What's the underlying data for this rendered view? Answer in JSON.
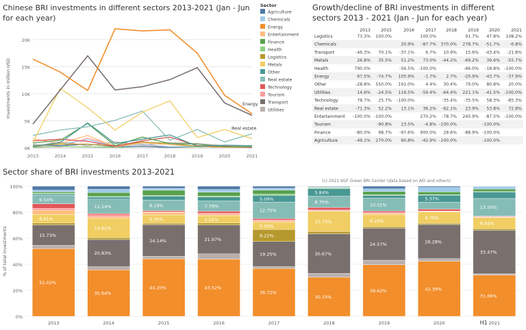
{
  "titles": {
    "line": "Chinese BRI investments in different sectors 2013-2021 (Jan - Jun for each year)",
    "table": "Growth/decline of BRI investments in different sectors 2013 - 2021 (Jan - Jun for each year)",
    "bar": "Sector share of BRI investments 2013-2021",
    "credit": "(c) 2021 IIGF Green BRI Center (data based on AEI and others)"
  },
  "legend": {
    "title": "Sector",
    "items": [
      {
        "name": "Agriculture",
        "color": "#4e79a7"
      },
      {
        "name": "Chemicals",
        "color": "#a0cbe8"
      },
      {
        "name": "Energy",
        "color": "#f28e2b"
      },
      {
        "name": "Entertainment",
        "color": "#ffbe7d"
      },
      {
        "name": "Finance",
        "color": "#59a14f"
      },
      {
        "name": "Health",
        "color": "#8cd17d"
      },
      {
        "name": "Logistics",
        "color": "#b6992d"
      },
      {
        "name": "Metals",
        "color": "#f1ce63"
      },
      {
        "name": "Other",
        "color": "#499894"
      },
      {
        "name": "Real estate",
        "color": "#86bcb6"
      },
      {
        "name": "Technology",
        "color": "#e15759"
      },
      {
        "name": "Tourism",
        "color": "#ff9d9a"
      },
      {
        "name": "Transport",
        "color": "#79706e"
      },
      {
        "name": "Utilities",
        "color": "#bab0ac"
      }
    ]
  },
  "chart_data": [
    {
      "type": "line",
      "title": "Chinese BRI investments in different sectors 2013-2021 (Jan - Jun for each year)",
      "xlabel": "",
      "ylabel": "Investments in million USD",
      "x": [
        "2013",
        "2014",
        "2015",
        "2016",
        "2017",
        "2018",
        "2019",
        "2020",
        "2021"
      ],
      "ylim": [
        0,
        22000
      ],
      "yticks": [
        "0K",
        "5K",
        "10K",
        "15K",
        "20K"
      ],
      "yticks_values": [
        0,
        5000,
        10000,
        15000,
        20000
      ],
      "annotations": [
        "Energy",
        "Real estate"
      ],
      "series": [
        {
          "name": "Energy",
          "values": [
            16400,
            14000,
            10600,
            22000,
            21600,
            21800,
            17500,
            9700,
            6300
          ]
        },
        {
          "name": "Transport",
          "values": [
            4400,
            10700,
            17000,
            10700,
            11300,
            12600,
            14800,
            8300,
            6000
          ]
        },
        {
          "name": "Metals",
          "values": [
            1000,
            11000,
            7400,
            3300,
            6600,
            8700,
            1900,
            3400,
            1700
          ]
        },
        {
          "name": "Real estate",
          "values": [
            2300,
            3300,
            3900,
            5100,
            6800,
            1400,
            3400,
            1100,
            2600
          ]
        },
        {
          "name": "Other",
          "values": [
            200,
            1000,
            4600,
            800,
            1600,
            2400,
            300,
            500,
            400
          ]
        },
        {
          "name": "Finance",
          "values": [
            900,
            1400,
            4500,
            400,
            2000,
            800,
            700,
            200,
            200
          ]
        },
        {
          "name": "Technology",
          "values": [
            1300,
            1600,
            1200,
            300,
            1300,
            2000,
            400,
            300,
            100
          ]
        },
        {
          "name": "Logistics",
          "values": [
            400,
            700,
            700,
            300,
            1100,
            800,
            300,
            200,
            100
          ]
        },
        {
          "name": "Entertainment",
          "values": [
            1700,
            800,
            2300,
            200,
            900,
            600,
            300,
            100,
            100
          ]
        },
        {
          "name": "Chemicals",
          "values": [
            500,
            700,
            1500,
            300,
            700,
            200,
            300,
            100,
            100
          ]
        },
        {
          "name": "Utilities",
          "values": [
            300,
            1100,
            400,
            1100,
            500,
            1000,
            800,
            400,
            200
          ]
        },
        {
          "name": "Agriculture",
          "values": [
            600,
            400,
            700,
            200,
            300,
            100,
            300,
            100,
            100
          ]
        },
        {
          "name": "Health",
          "values": [
            100,
            300,
            200,
            100,
            300,
            100,
            200,
            200,
            100
          ]
        },
        {
          "name": "Tourism",
          "values": [
            300,
            200,
            1800,
            400,
            600,
            200,
            300,
            100,
            100
          ]
        }
      ]
    },
    {
      "type": "table",
      "title": "Growth/decline of BRI investments in different sectors 2013 - 2021 (Jan - Jun for each year)",
      "columns": [
        "",
        "2013",
        "2015",
        "2016",
        "2017",
        "2018",
        "2019",
        "2020",
        "2021"
      ],
      "rows": [
        [
          "Logistics",
          "73.3%",
          "100.0%",
          "",
          "100.0%",
          "",
          "91.7%",
          "47.8%",
          "108.2%"
        ],
        [
          "Chemicals",
          "",
          "",
          "20.9%",
          "-87.7%",
          "370.0%",
          "278.7%",
          "-51.7%",
          "-6.8%"
        ],
        [
          "Transport",
          "-46.3%",
          "70.1%",
          "-37.1%",
          "6.7%",
          "10.9%",
          "15.6%",
          "-43.4%",
          "-21.8%"
        ],
        [
          "Metals",
          "26.8%",
          "35.5%",
          "51.2%",
          "73.0%",
          "-44.2%",
          "-69.2%",
          "39.6%",
          "-55.7%"
        ],
        [
          "Health",
          "790.0%",
          "",
          "-56.5%",
          "-100.0%",
          "",
          "-66.0%",
          "-18.8%",
          "-100.0%"
        ],
        [
          "Energy",
          "67.5%",
          "-74.7%",
          "105.9%",
          "-1.7%",
          "2.7%",
          "-20.9%",
          "-43.7%",
          "-37.9%"
        ],
        [
          "Other",
          "-28.8%",
          "550.0%",
          "191.0%",
          "4.4%",
          "30.4%",
          "79.0%",
          "80.8%",
          "20.0%"
        ],
        [
          "Utilities",
          "14.6%",
          "-24.5%",
          "116.5%",
          "-59.4%",
          "-64.4%",
          "221.1%",
          "-41.5%",
          "-100.0%"
        ],
        [
          "Technology",
          "78.7%",
          "25.7%",
          "-100.0%",
          "",
          "-35.4%",
          "-35.5%",
          "58.3%",
          "-85.3%"
        ],
        [
          "Real estate",
          "-71.3%",
          "52.2%",
          "13.1%",
          "36.2%",
          "-62.1%",
          "23.9%",
          "53.8%",
          "72.8%"
        ],
        [
          "Entertainment",
          "-100.0%",
          "-100.0%",
          "",
          "270.2%",
          "-78.7%",
          "245.9%",
          "-87.5%",
          "-100.0%"
        ],
        [
          "Tourism",
          "",
          "-90.8%",
          "23.5%",
          "-4.8%",
          "-100.0%",
          "",
          "-100.0%",
          ""
        ],
        [
          "Finance",
          "-80.0%",
          "98.7%",
          "-97.6%",
          "900.0%",
          "28.6%",
          "-88.9%",
          "-100.0%",
          ""
        ],
        [
          "Agriculture",
          "-49.1%",
          "270.0%",
          "60.8%",
          "-42.9%",
          "-100.0%",
          "",
          "-100.0%",
          ""
        ]
      ]
    },
    {
      "type": "bar",
      "stacked": true,
      "title": "Sector share of BRI investments 2013-2021",
      "ylabel": "% of total investments",
      "ylim": [
        0,
        100
      ],
      "yticks": [
        "0%",
        "20%",
        "40%",
        "60%",
        "80%",
        "100%"
      ],
      "yticks_values": [
        0,
        20,
        40,
        60,
        80,
        100
      ],
      "categories": [
        "2013",
        "2014",
        "2015",
        "2016",
        "2017",
        "2018",
        "2019",
        "2020",
        "2021"
      ],
      "h1_marker": "H1",
      "stack_order": [
        "Energy",
        "Utilities",
        "Transport",
        "Logistics",
        "Metals",
        "Entertainment",
        "Tourism",
        "Technology",
        "Real estate",
        "Other",
        "Health",
        "Finance",
        "Chemicals",
        "Agriculture"
      ],
      "series": [
        {
          "name": "Energy",
          "values": [
            52.02,
            35.64,
            44.2,
            43.52,
            36.72,
            30.33,
            39.62,
            42.39,
            31.66
          ]
        },
        {
          "name": "Utilities",
          "values": [
            2.5,
            2.5,
            2.0,
            4.0,
            1.5,
            3.0,
            3.5,
            2.0,
            1.0
          ]
        },
        {
          "name": "Transport",
          "values": [
            15.73,
            20.83,
            24.14,
            21.97,
            19.25,
            30.67,
            24.57,
            26.28,
            33.47
          ]
        },
        {
          "name": "Logistics",
          "values": [
            1.5,
            1.5,
            1.2,
            1.5,
            9.22,
            1.8,
            1.2,
            1.0,
            1.2
          ]
        },
        {
          "name": "Metals",
          "values": [
            6.61,
            14.82,
            6.36,
            5.52,
            5.5,
            15.73,
            9.29,
            8.7,
            8.64
          ]
        },
        {
          "name": "Entertainment",
          "values": [
            3.2,
            1.2,
            2.0,
            1.0,
            1.2,
            0.5,
            1.0,
            0.4,
            0.3
          ]
        },
        {
          "name": "Tourism",
          "values": [
            1.5,
            1.5,
            0.5,
            1.0,
            0.5,
            0.5,
            0.5,
            0.3,
            0.3
          ]
        },
        {
          "name": "Technology",
          "values": [
            3.5,
            1.0,
            0.8,
            1.5,
            1.2,
            2.0,
            1.2,
            1.5,
            0.5
          ]
        },
        {
          "name": "Real estate",
          "values": [
            6.54,
            11.14,
            8.19,
            7.79,
            12.75,
            8.75,
            10.01,
            5.37,
            13.5
          ]
        },
        {
          "name": "Other",
          "values": [
            1.0,
            1.5,
            3.0,
            3.0,
            5.09,
            5.84,
            2.0,
            5.37,
            5.0
          ]
        },
        {
          "name": "Health",
          "values": [
            0.5,
            0.5,
            0.5,
            0.7,
            1.0,
            0.5,
            0.5,
            0.5,
            0.3
          ]
        },
        {
          "name": "Finance",
          "values": [
            1.0,
            3.0,
            4.0,
            3.0,
            3.0,
            0.4,
            2.6,
            2.0,
            2.0
          ]
        },
        {
          "name": "Chemicals",
          "values": [
            1.4,
            2.5,
            1.5,
            2.0,
            1.5,
            0.5,
            2.0,
            3.5,
            2.0
          ]
        },
        {
          "name": "Agriculture",
          "values": [
            3.0,
            2.36,
            1.61,
            2.5,
            1.56,
            0.48,
            2.0,
            0.89,
            0.13
          ]
        }
      ],
      "labels": [
        {
          "category": "2013",
          "series": "Energy",
          "text": "52.02%"
        },
        {
          "category": "2013",
          "series": "Transport",
          "text": "15.73%"
        },
        {
          "category": "2013",
          "series": "Metals",
          "text": "6.61%"
        },
        {
          "category": "2013",
          "series": "Real estate",
          "text": "6.54%"
        },
        {
          "category": "2014",
          "series": "Energy",
          "text": "35.64%"
        },
        {
          "category": "2014",
          "series": "Transport",
          "text": "20.83%"
        },
        {
          "category": "2014",
          "series": "Metals",
          "text": "14.82%"
        },
        {
          "category": "2014",
          "series": "Real estate",
          "text": "11.14%"
        },
        {
          "category": "2015",
          "series": "Energy",
          "text": "44.20%"
        },
        {
          "category": "2015",
          "series": "Transport",
          "text": "24.14%"
        },
        {
          "category": "2015",
          "series": "Metals",
          "text": "6.36%"
        },
        {
          "category": "2015",
          "series": "Real estate",
          "text": "8.19%"
        },
        {
          "category": "2016",
          "series": "Energy",
          "text": "43.52%"
        },
        {
          "category": "2016",
          "series": "Transport",
          "text": "21.97%"
        },
        {
          "category": "2016",
          "series": "Metals",
          "text": "5.52%"
        },
        {
          "category": "2016",
          "series": "Real estate",
          "text": "7.79%"
        },
        {
          "category": "2017",
          "series": "Energy",
          "text": "36.72%"
        },
        {
          "category": "2017",
          "series": "Transport",
          "text": "19.25%"
        },
        {
          "category": "2017",
          "series": "Logistics",
          "text": "9.22%"
        },
        {
          "category": "2017",
          "series": "Metals",
          "text": "5.50%"
        },
        {
          "category": "2017",
          "series": "Real estate",
          "text": "12.75%"
        },
        {
          "category": "2017",
          "series": "Other",
          "text": "5.09%"
        },
        {
          "category": "2018",
          "series": "Energy",
          "text": "30.33%"
        },
        {
          "category": "2018",
          "series": "Transport",
          "text": "30.67%"
        },
        {
          "category": "2018",
          "series": "Metals",
          "text": "15.73%"
        },
        {
          "category": "2018",
          "series": "Real estate",
          "text": "8.75%"
        },
        {
          "category": "2018",
          "series": "Other",
          "text": "5.84%"
        },
        {
          "category": "2019",
          "series": "Energy",
          "text": "39.62%"
        },
        {
          "category": "2019",
          "series": "Transport",
          "text": "24.57%"
        },
        {
          "category": "2019",
          "series": "Metals",
          "text": "9.29%"
        },
        {
          "category": "2019",
          "series": "Real estate",
          "text": "10.01%"
        },
        {
          "category": "2020",
          "series": "Energy",
          "text": "42.39%"
        },
        {
          "category": "2020",
          "series": "Transport",
          "text": "26.28%"
        },
        {
          "category": "2020",
          "series": "Metals",
          "text": "8.70%"
        },
        {
          "category": "2020",
          "series": "Other",
          "text": "5.37%"
        },
        {
          "category": "2021",
          "series": "Energy",
          "text": "31.66%"
        },
        {
          "category": "2021",
          "series": "Transport",
          "text": "33.47%"
        },
        {
          "category": "2021",
          "series": "Metals",
          "text": "8.64%"
        },
        {
          "category": "2021",
          "series": "Real estate",
          "text": "13.50%"
        }
      ]
    }
  ]
}
